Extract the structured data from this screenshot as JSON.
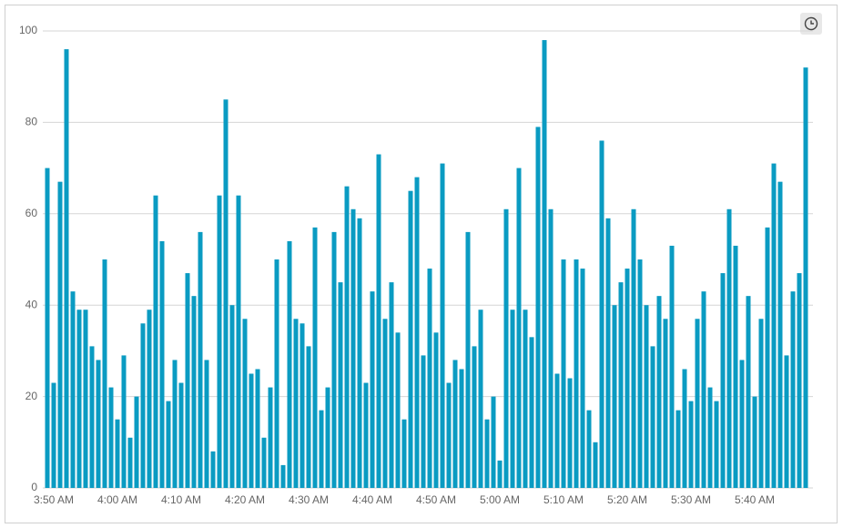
{
  "chart_data": {
    "type": "bar",
    "categories": [
      null,
      "3:50 AM",
      null,
      null,
      null,
      null,
      null,
      null,
      null,
      null,
      null,
      "4:00 AM",
      null,
      null,
      null,
      null,
      null,
      null,
      null,
      null,
      null,
      "4:10 AM",
      null,
      null,
      null,
      null,
      null,
      null,
      null,
      null,
      null,
      "4:20 AM",
      null,
      null,
      null,
      null,
      null,
      null,
      null,
      null,
      null,
      "4:30 AM",
      null,
      null,
      null,
      null,
      null,
      null,
      null,
      null,
      null,
      "4:40 AM",
      null,
      null,
      null,
      null,
      null,
      null,
      null,
      null,
      null,
      "4:50 AM",
      null,
      null,
      null,
      null,
      null,
      null,
      null,
      null,
      null,
      "5:00 AM",
      null,
      null,
      null,
      null,
      null,
      null,
      null,
      null,
      null,
      "5:10 AM",
      null,
      null,
      null,
      null,
      null,
      null,
      null,
      null,
      null,
      "5:20 AM",
      null,
      null,
      null,
      null,
      null,
      null,
      null,
      null,
      null,
      "5:30 AM",
      null,
      null,
      null,
      null,
      null,
      null,
      null,
      null,
      null,
      "5:40 AM",
      null,
      null,
      null,
      null,
      null,
      null,
      null,
      null
    ],
    "values": [
      70,
      23,
      67,
      96,
      43,
      39,
      39,
      31,
      28,
      50,
      22,
      15,
      29,
      11,
      20,
      36,
      39,
      64,
      54,
      19,
      28,
      23,
      47,
      42,
      56,
      28,
      8,
      64,
      85,
      40,
      64,
      37,
      25,
      26,
      11,
      22,
      50,
      5,
      54,
      37,
      36,
      31,
      57,
      17,
      22,
      56,
      45,
      66,
      61,
      59,
      23,
      43,
      73,
      37,
      45,
      34,
      15,
      65,
      68,
      29,
      48,
      34,
      71,
      23,
      28,
      26,
      56,
      31,
      39,
      15,
      20,
      6,
      61,
      39,
      70,
      39,
      33,
      79,
      98,
      61,
      25,
      50,
      24,
      50,
      48,
      17,
      10,
      76,
      59,
      40,
      45,
      48,
      61,
      50,
      40,
      31,
      42,
      37,
      53,
      17,
      26,
      19,
      37,
      43,
      22,
      19,
      47,
      61,
      53,
      28,
      42,
      20,
      37,
      57,
      71,
      67,
      29,
      43,
      47,
      92
    ],
    "color": "#0a9bc2",
    "ylim": [
      0,
      100
    ],
    "yticks": [
      0,
      20,
      40,
      60,
      80,
      100
    ],
    "grid": true
  }
}
